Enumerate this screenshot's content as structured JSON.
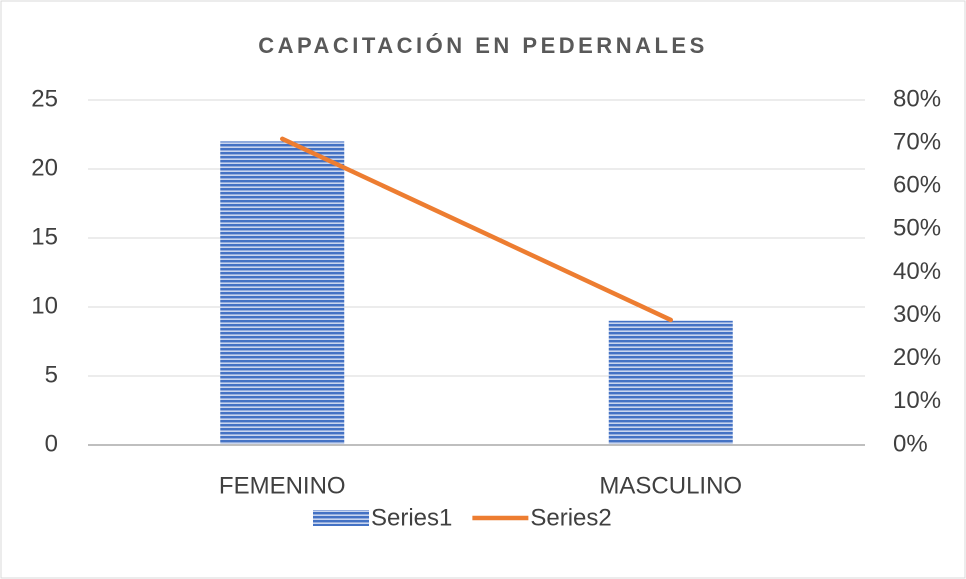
{
  "chart_data": {
    "type": "bar",
    "title": "CAPACITACIÓN EN PEDERNALES",
    "categories": [
      "FEMENINO",
      "MASCULINO"
    ],
    "series": [
      {
        "name": "Series1",
        "color": "#4472c4",
        "values": [
          22,
          9
        ]
      },
      {
        "name": "Series2",
        "color": "#ed7d31",
        "values": [
          71,
          29
        ],
        "axis": "y2",
        "type": "line"
      }
    ],
    "ylim": [
      0,
      25
    ],
    "yticks": [
      0,
      5,
      10,
      15,
      20,
      25
    ],
    "y2lim": [
      0,
      80
    ],
    "y2ticks": [
      {
        "value": 0,
        "label": "0%"
      },
      {
        "value": 10,
        "label": "10%"
      },
      {
        "value": 20,
        "label": "20%"
      },
      {
        "value": 30,
        "label": "30%"
      },
      {
        "value": 40,
        "label": "40%"
      },
      {
        "value": 50,
        "label": "50%"
      },
      {
        "value": 60,
        "label": "60%"
      },
      {
        "value": 70,
        "label": "70%"
      },
      {
        "value": 80,
        "label": "80%"
      }
    ],
    "grid": true,
    "legend": "bottom"
  }
}
